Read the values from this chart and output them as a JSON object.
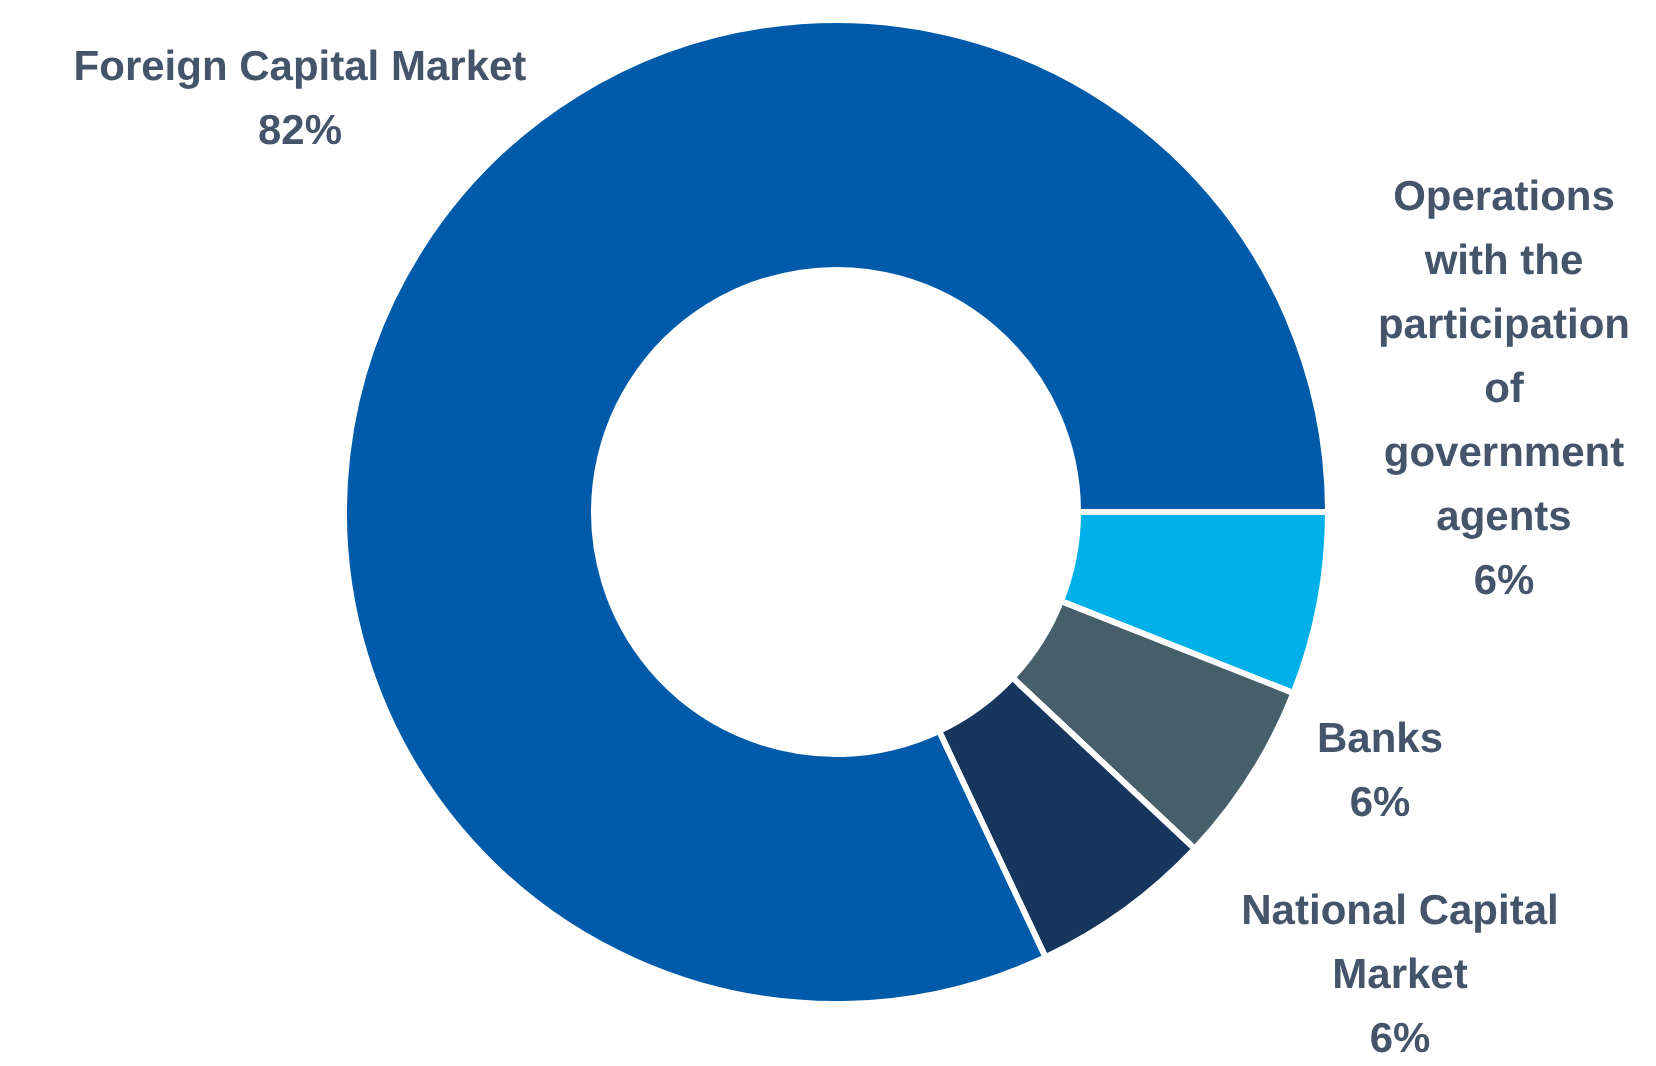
{
  "chart_data": {
    "type": "donut",
    "categories": [
      "Operations with the participation of government agents",
      "Banks",
      "National Capital Market",
      "Foreign Capital Market"
    ],
    "values": [
      6,
      6,
      6,
      82
    ],
    "value_labels": [
      "6%",
      "6%",
      "6%",
      "82%"
    ],
    "colors": [
      "#00b0e8",
      "#475f6b",
      "#17365d",
      "#005aaa"
    ],
    "legend": false
  }
}
